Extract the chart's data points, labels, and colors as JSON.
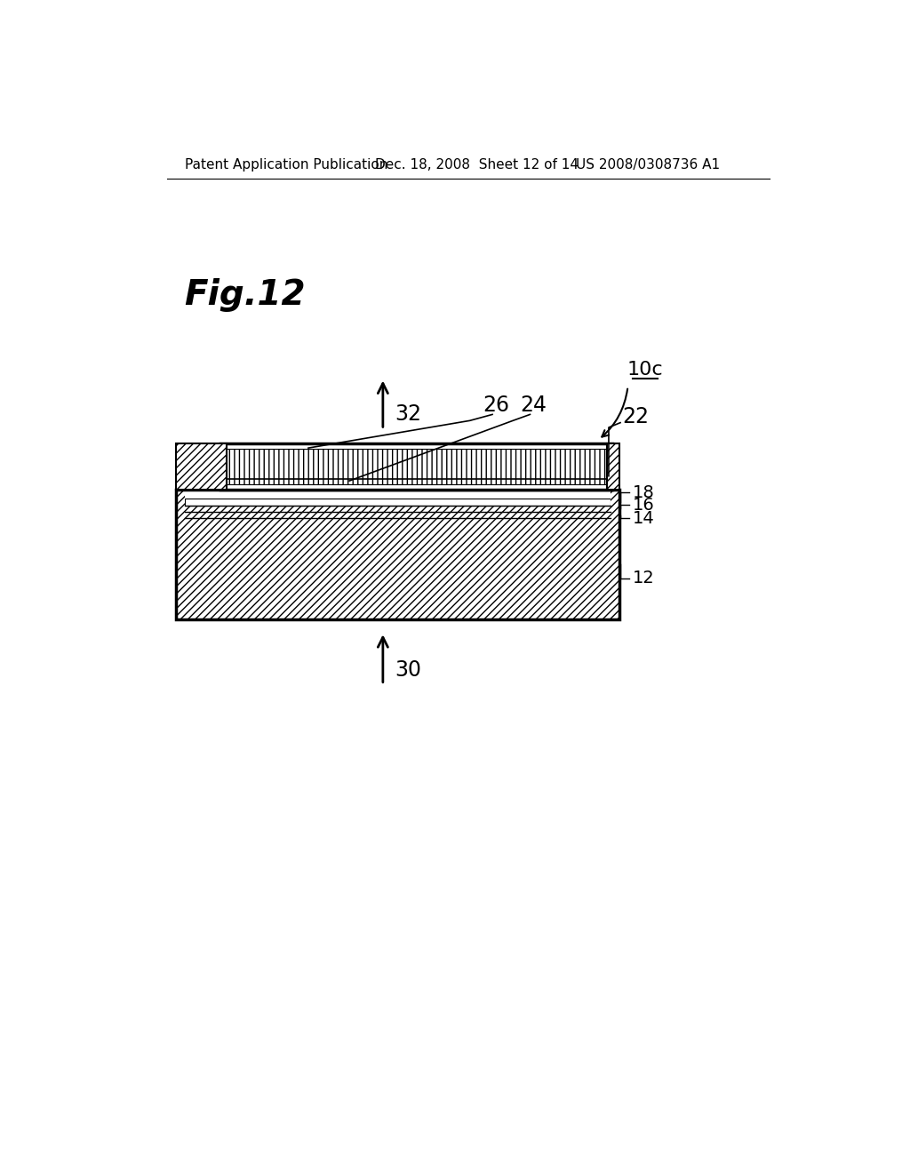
{
  "background_color": "#ffffff",
  "header_left": "Patent Application Publication",
  "header_mid": "Dec. 18, 2008  Sheet 12 of 14",
  "header_right": "US 2008/0308736 A1",
  "fig_label": "Fig.12",
  "label_10c": "10c",
  "label_32": "32",
  "label_30": "30",
  "label_26": "26",
  "label_24": "24",
  "label_22": "22",
  "label_18": "18",
  "label_16": "16",
  "label_14": "14",
  "label_12": "12"
}
